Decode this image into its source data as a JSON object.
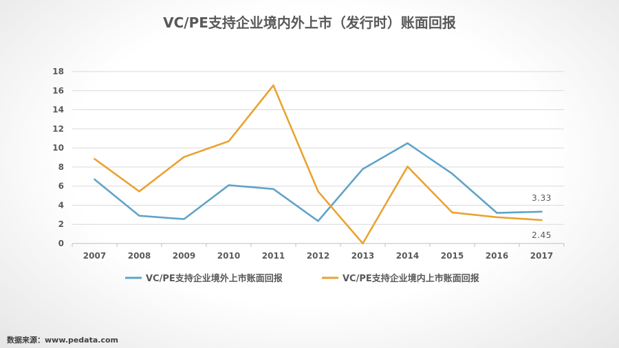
{
  "chart_data": {
    "type": "line",
    "title": "VC/PE支持企业境内外上市（发行时）账面回报",
    "categories": [
      "2007",
      "2008",
      "2009",
      "2010",
      "2011",
      "2012",
      "2013",
      "2014",
      "2015",
      "2016",
      "2017"
    ],
    "ylim": [
      0,
      18
    ],
    "yticks": [
      0,
      2,
      4,
      6,
      8,
      10,
      12,
      14,
      16,
      18
    ],
    "grid": true,
    "legend_position": "bottom",
    "series": [
      {
        "name": "VC/PE支持企业境外上市账面回报",
        "color": "#5ea3c8",
        "values": [
          6.7,
          2.9,
          2.55,
          6.1,
          5.7,
          2.35,
          7.8,
          10.5,
          7.3,
          3.2,
          3.33
        ]
      },
      {
        "name": "VC/PE支持企业境内上市账面回报",
        "color": "#eaa22f",
        "values": [
          8.85,
          5.45,
          9.05,
          10.7,
          16.55,
          5.45,
          0.0,
          8.05,
          3.25,
          2.75,
          2.45
        ]
      }
    ],
    "annotations": [
      {
        "text": "3.33",
        "series": 0,
        "index": 10
      },
      {
        "text": "2.45",
        "series": 1,
        "index": 10
      }
    ]
  },
  "source": "数据来源：www.pedata.com"
}
